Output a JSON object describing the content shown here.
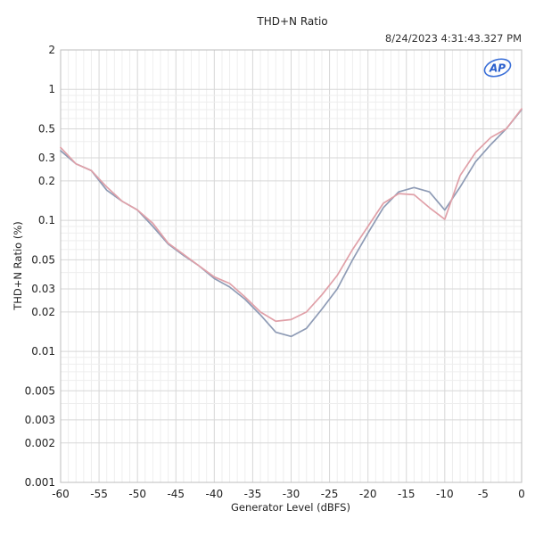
{
  "header": {
    "timestamp": "8/24/2023 4:31:43.327 PM",
    "logo_icon": "ap-logo-icon"
  },
  "chart_data": {
    "type": "line",
    "title": "THD+N Ratio",
    "xlabel": "Generator Level (dBFS)",
    "ylabel": "THD+N Ratio (%)",
    "xlim": [
      -60,
      0
    ],
    "ylim": [
      0.001,
      2
    ],
    "yscale": "log",
    "grid": true,
    "x_ticks": [
      -60,
      -55,
      -50,
      -45,
      -40,
      -35,
      -30,
      -25,
      -20,
      -15,
      -10,
      -5,
      0
    ],
    "x_tick_labels": [
      "-60",
      "-55",
      "-50",
      "-45",
      "-40",
      "-35",
      "-30",
      "-25",
      "-20",
      "-15",
      "-10",
      "-5",
      "0"
    ],
    "y_ticks": [
      0.001,
      0.002,
      0.003,
      0.005,
      0.01,
      0.02,
      0.03,
      0.05,
      0.1,
      0.2,
      0.3,
      0.5,
      1,
      2
    ],
    "y_tick_labels": [
      "0.001",
      "0.002",
      "0.003",
      "0.005",
      "0.01",
      "0.02",
      "0.03",
      "0.05",
      "0.1",
      "0.2",
      "0.3",
      "0.5",
      "1",
      "2"
    ],
    "series": [
      {
        "color": "#8e9bb5",
        "x": [
          -60,
          -58,
          -56,
          -54,
          -52,
          -50,
          -48,
          -46,
          -44,
          -42,
          -40,
          -38,
          -36,
          -34,
          -32,
          -30,
          -28,
          -26,
          -24,
          -22,
          -20,
          -18,
          -16,
          -14,
          -12,
          -10,
          -8,
          -6,
          -4,
          -2,
          0
        ],
        "y": [
          0.34,
          0.27,
          0.24,
          0.17,
          0.14,
          0.12,
          0.09,
          0.066,
          0.054,
          0.045,
          0.036,
          0.031,
          0.025,
          0.019,
          0.014,
          0.013,
          0.015,
          0.021,
          0.03,
          0.05,
          0.08,
          0.125,
          0.165,
          0.178,
          0.165,
          0.12,
          0.18,
          0.28,
          0.38,
          0.5,
          0.7
        ]
      },
      {
        "color": "#e0a0a8",
        "x": [
          -60,
          -58,
          -56,
          -54,
          -52,
          -50,
          -48,
          -46,
          -44,
          -42,
          -40,
          -38,
          -36,
          -34,
          -32,
          -30,
          -28,
          -26,
          -24,
          -22,
          -20,
          -18,
          -16,
          -14,
          -12,
          -10,
          -8,
          -6,
          -4,
          -2,
          0
        ],
        "y": [
          0.36,
          0.27,
          0.24,
          0.18,
          0.14,
          0.12,
          0.095,
          0.067,
          0.055,
          0.045,
          0.037,
          0.033,
          0.026,
          0.02,
          0.017,
          0.0175,
          0.02,
          0.027,
          0.038,
          0.06,
          0.09,
          0.135,
          0.16,
          0.157,
          0.125,
          0.102,
          0.22,
          0.33,
          0.43,
          0.5,
          0.71
        ]
      }
    ]
  }
}
